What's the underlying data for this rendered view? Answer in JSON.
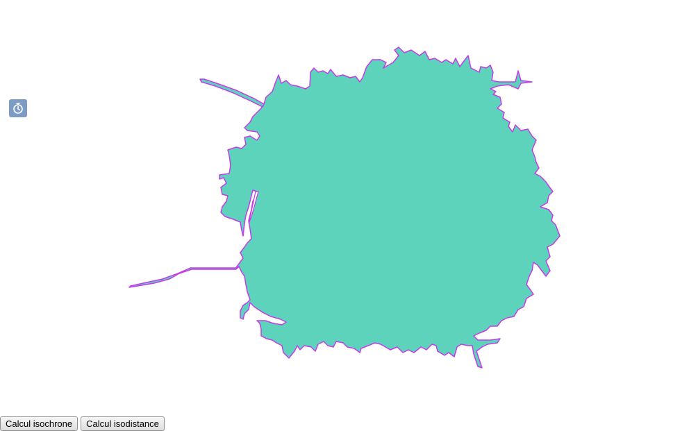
{
  "map": {
    "isochrone_fill_color": "#5dd3bb",
    "isochrone_stroke_color": "#c43ae8",
    "background_color": "#ffffff"
  },
  "controls": {
    "timer_icon": "stopwatch-icon",
    "timer_button_color": "#7d9cc5"
  },
  "toolbar": {
    "isochrone_label": "Calcul isochrone",
    "isodistance_label": "Calcul isodistance"
  }
}
